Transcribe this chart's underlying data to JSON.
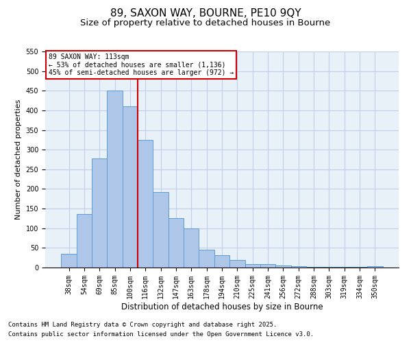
{
  "title": "89, SAXON WAY, BOURNE, PE10 9QY",
  "subtitle": "Size of property relative to detached houses in Bourne",
  "xlabel": "Distribution of detached houses by size in Bourne",
  "ylabel": "Number of detached properties",
  "bar_labels": [
    "38sqm",
    "54sqm",
    "69sqm",
    "85sqm",
    "100sqm",
    "116sqm",
    "132sqm",
    "147sqm",
    "163sqm",
    "178sqm",
    "194sqm",
    "210sqm",
    "225sqm",
    "241sqm",
    "256sqm",
    "272sqm",
    "288sqm",
    "303sqm",
    "319sqm",
    "334sqm",
    "350sqm"
  ],
  "bar_heights": [
    35,
    137,
    278,
    450,
    410,
    325,
    192,
    125,
    100,
    46,
    32,
    20,
    8,
    8,
    5,
    3,
    2,
    1,
    1,
    1,
    3
  ],
  "bar_color": "#aec6e8",
  "bar_edge_color": "#5b9bd5",
  "ylim": [
    0,
    550
  ],
  "yticks": [
    0,
    50,
    100,
    150,
    200,
    250,
    300,
    350,
    400,
    450,
    500,
    550
  ],
  "vline_color": "#cc0000",
  "annotation_title": "89 SAXON WAY: 113sqm",
  "annotation_line1": "← 53% of detached houses are smaller (1,136)",
  "annotation_line2": "45% of semi-detached houses are larger (972) →",
  "annotation_box_color": "#ffffff",
  "annotation_box_edge": "#cc0000",
  "footnote1": "Contains HM Land Registry data © Crown copyright and database right 2025.",
  "footnote2": "Contains public sector information licensed under the Open Government Licence v3.0.",
  "bg_color": "#ffffff",
  "axes_bg_color": "#e8f0f8",
  "grid_color": "#c0d0e8",
  "title_fontsize": 11,
  "subtitle_fontsize": 9.5,
  "footnote_fontsize": 6.5,
  "tick_fontsize": 7,
  "ylabel_fontsize": 8,
  "xlabel_fontsize": 8.5
}
